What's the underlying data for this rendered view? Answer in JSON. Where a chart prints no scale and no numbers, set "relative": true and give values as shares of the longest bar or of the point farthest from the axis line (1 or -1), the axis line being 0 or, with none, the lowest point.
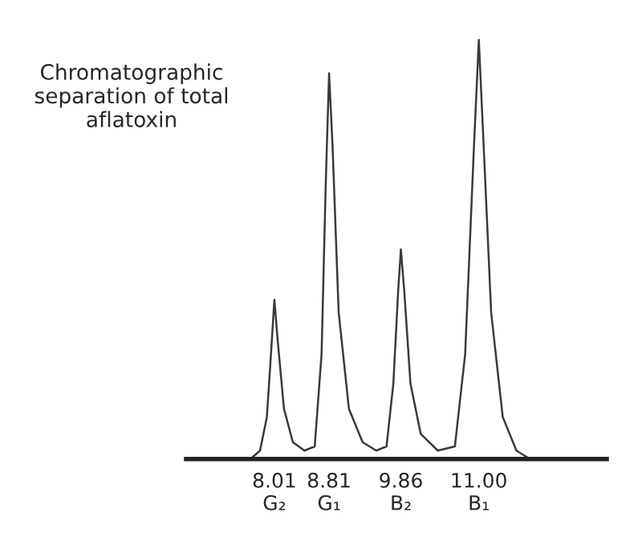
{
  "chart_data": {
    "type": "line",
    "title": "Chromatographic separation of total aflatoxin",
    "relative": true,
    "x": [
      7.66,
      7.8,
      7.9,
      7.96,
      8.01,
      8.06,
      8.15,
      8.28,
      8.45,
      8.6,
      8.7,
      8.76,
      8.81,
      8.86,
      8.95,
      9.1,
      9.3,
      9.5,
      9.65,
      9.75,
      9.82,
      9.86,
      9.91,
      10.0,
      10.15,
      10.4,
      10.65,
      10.8,
      10.93,
      11.0,
      11.07,
      11.18,
      11.35,
      11.55,
      11.75
    ],
    "series": [
      {
        "color": "#3a3a3a",
        "values": [
          0.0,
          0.02,
          0.1,
          0.25,
          0.38,
          0.28,
          0.12,
          0.04,
          0.02,
          0.03,
          0.25,
          0.65,
          0.92,
          0.75,
          0.35,
          0.12,
          0.04,
          0.02,
          0.03,
          0.18,
          0.4,
          0.5,
          0.4,
          0.18,
          0.06,
          0.02,
          0.03,
          0.25,
          0.75,
          1.0,
          0.75,
          0.35,
          0.1,
          0.02,
          0.0
        ]
      }
    ],
    "xlim": [
      6.72,
      12.87
    ],
    "xticks": [
      {
        "value": 8.01,
        "label": "8.01\nG₂"
      },
      {
        "value": 8.81,
        "label": "8.81\nG₁"
      },
      {
        "value": 9.86,
        "label": "9.86\nB₂"
      },
      {
        "value": 11.0,
        "label": "11.00\nB₁"
      }
    ],
    "tick_labels": "x",
    "marker": "none",
    "line_style": "solid"
  }
}
